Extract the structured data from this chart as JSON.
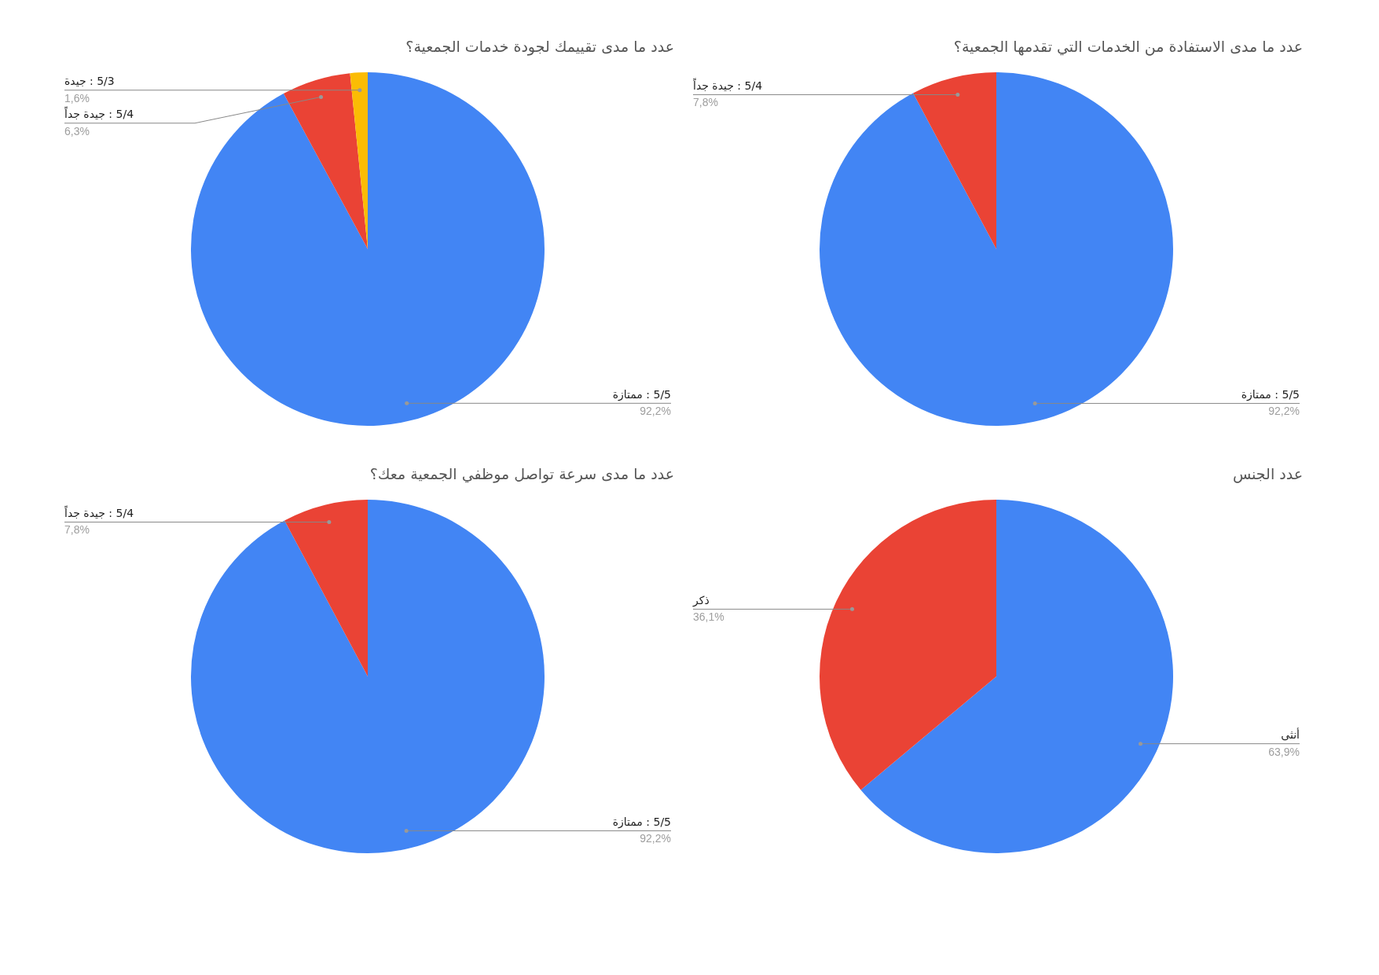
{
  "chart_data": [
    {
      "type": "pie",
      "title": "عدد ما مدى تقييمك لجودة خدمات الجمعية؟",
      "categories": [
        "5/5 : ممتازة",
        "5/4 : جيدة جداً",
        "5/3 : جيدة"
      ],
      "values": [
        92.2,
        6.3,
        1.6
      ],
      "colors": [
        "#4285f4",
        "#ea4335",
        "#fbbc04"
      ],
      "value_labels": [
        "92,2%",
        "6,3%",
        "1,6%"
      ]
    },
    {
      "type": "pie",
      "title": "عدد ما مدى الاستفادة من الخدمات التي تقدمها الجمعية؟",
      "categories": [
        "5/5 : ممتازة",
        "5/4 : جيدة جداً"
      ],
      "values": [
        92.2,
        7.8
      ],
      "colors": [
        "#4285f4",
        "#ea4335"
      ],
      "value_labels": [
        "92,2%",
        "7,8%"
      ]
    },
    {
      "type": "pie",
      "title": "عدد ما مدى سرعة تواصل موظفي الجمعية معك؟",
      "categories": [
        "5/5 : ممتازة",
        "5/4 : جيدة جداً"
      ],
      "values": [
        92.2,
        7.8
      ],
      "colors": [
        "#4285f4",
        "#ea4335"
      ],
      "value_labels": [
        "92,2%",
        "7,8%"
      ]
    },
    {
      "type": "pie",
      "title": "عدد الجنس",
      "categories": [
        "أنثى",
        "ذكر"
      ],
      "values": [
        63.9,
        36.1
      ],
      "colors": [
        "#4285f4",
        "#ea4335"
      ],
      "value_labels": [
        "63,9%",
        "36,1%"
      ]
    }
  ]
}
